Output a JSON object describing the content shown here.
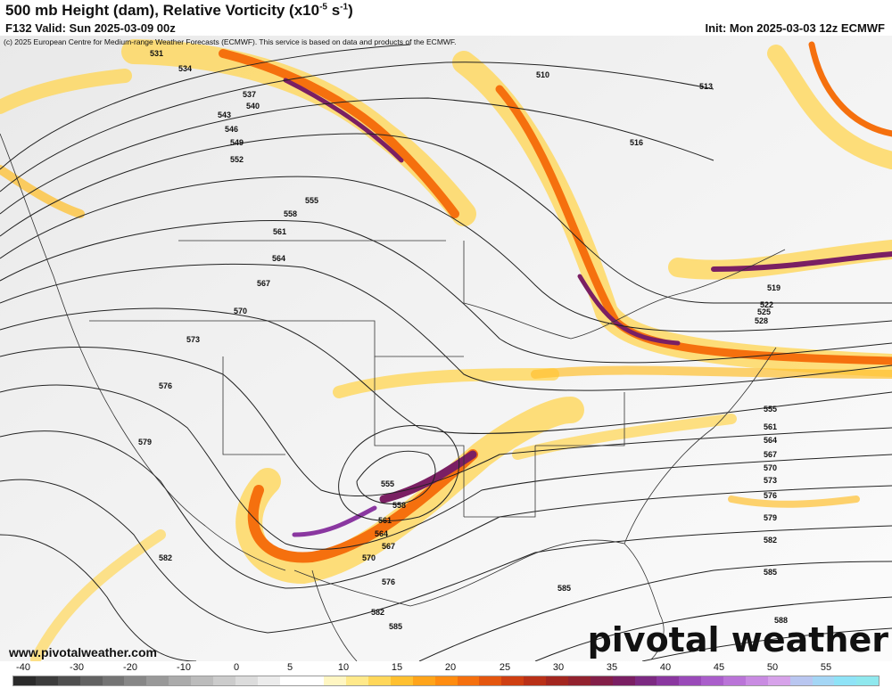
{
  "header": {
    "title_main": "500 mb Height (dam), Relative Vorticity (x10",
    "title_exp": "-5",
    "title_mid": " s",
    "title_exp2": "-1",
    "title_end": ")",
    "valid": "F132 Valid: Sun 2025-03-09 00z",
    "init": "Init: Mon 2025-03-03 12z ECMWF",
    "copyright": "(c) 2025 European Centre for Medium-range Weather Forecasts (ECMWF). This service is based on data and products of the ECMWF."
  },
  "footer": {
    "website": "www.pivotalweather.com",
    "brand": "pivotal weather"
  },
  "scale": {
    "labels": [
      "-40",
      "-30",
      "-20",
      "-10",
      "0",
      "5",
      "10",
      "15",
      "20",
      "25",
      "30",
      "35",
      "40",
      "45",
      "50",
      "55"
    ],
    "colors": [
      "#2b2b2b",
      "#3c3c3c",
      "#4f4f4f",
      "#626262",
      "#747474",
      "#878787",
      "#999999",
      "#ababab",
      "#bcbcbc",
      "#cccccc",
      "#dcdcdc",
      "#ececec",
      "#ffffff",
      "#ffffff",
      "#fff6c2",
      "#ffe98a",
      "#ffd75a",
      "#ffc030",
      "#ffa41a",
      "#ff8c10",
      "#f5700e",
      "#e4560f",
      "#cf3f12",
      "#b93017",
      "#a3261f",
      "#92222e",
      "#831f48",
      "#7a1f63",
      "#7c2a82",
      "#8a37a0",
      "#9a4ab9",
      "#aa5ecb",
      "#ba74d8",
      "#c98be2",
      "#d7a2ea",
      "#b9c6f0",
      "#a4d6f5",
      "#8fe3f7",
      "#8fe8ee"
    ]
  },
  "contour_labels": [
    {
      "text": "531"
    },
    {
      "text": "534"
    },
    {
      "text": "537"
    },
    {
      "text": "540"
    },
    {
      "text": "543"
    },
    {
      "text": "546"
    },
    {
      "text": "549"
    },
    {
      "text": "552"
    },
    {
      "text": "555"
    },
    {
      "text": "558"
    },
    {
      "text": "561"
    },
    {
      "text": "564"
    },
    {
      "text": "567"
    },
    {
      "text": "570"
    },
    {
      "text": "573"
    },
    {
      "text": "576"
    },
    {
      "text": "579"
    },
    {
      "text": "582"
    },
    {
      "text": "585"
    },
    {
      "text": "588"
    },
    {
      "text": "510"
    },
    {
      "text": "513"
    },
    {
      "text": "516"
    },
    {
      "text": "519"
    },
    {
      "text": "522"
    },
    {
      "text": "525"
    },
    {
      "text": "528"
    }
  ]
}
